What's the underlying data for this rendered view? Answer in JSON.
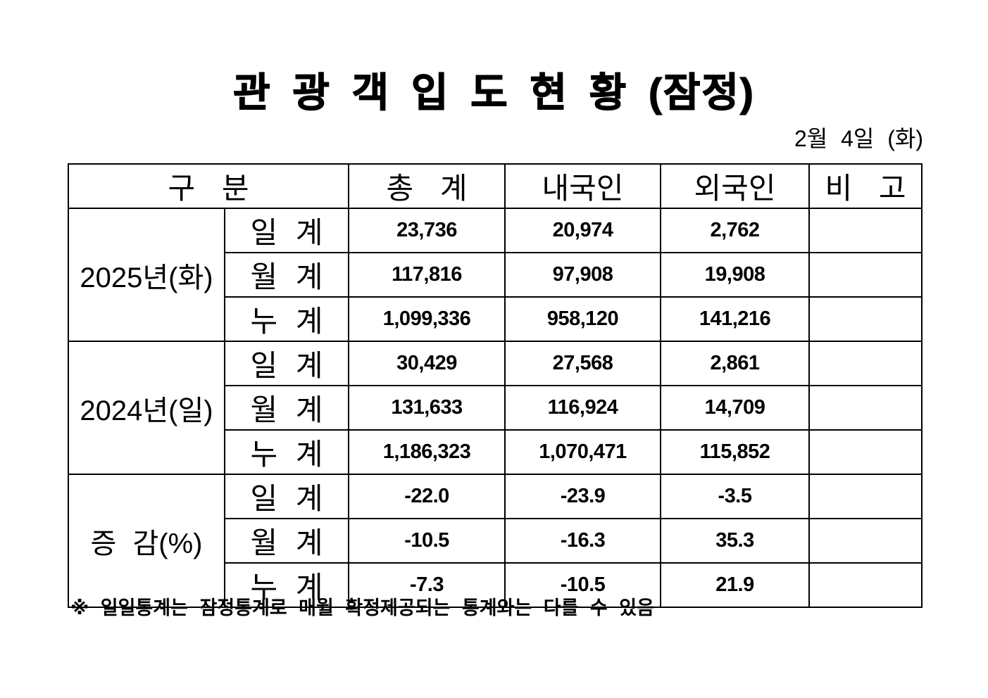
{
  "title": "관 광 객 입 도 현 황 (잠정)",
  "date": "2월 4일 (화)",
  "table": {
    "header": {
      "category": "구 분",
      "total": "총 계",
      "domestic": "내국인",
      "foreign": "외국인",
      "note": "비 고"
    },
    "groups": [
      {
        "label": "2025년(화)",
        "rows": [
          {
            "label": "일 계",
            "total": "23,736",
            "domestic": "20,974",
            "foreign": "2,762",
            "note": ""
          },
          {
            "label": "월 계",
            "total": "117,816",
            "domestic": "97,908",
            "foreign": "19,908",
            "note": ""
          },
          {
            "label": "누 계",
            "total": "1,099,336",
            "domestic": "958,120",
            "foreign": "141,216",
            "note": ""
          }
        ]
      },
      {
        "label": "2024년(일)",
        "rows": [
          {
            "label": "일 계",
            "total": "30,429",
            "domestic": "27,568",
            "foreign": "2,861",
            "note": ""
          },
          {
            "label": "월 계",
            "total": "131,633",
            "domestic": "116,924",
            "foreign": "14,709",
            "note": ""
          },
          {
            "label": "누 계",
            "total": "1,186,323",
            "domestic": "1,070,471",
            "foreign": "115,852",
            "note": ""
          }
        ]
      },
      {
        "label": "증 감(%)",
        "rows": [
          {
            "label": "일 계",
            "total": "-22.0",
            "domestic": "-23.9",
            "foreign": "-3.5",
            "note": ""
          },
          {
            "label": "월 계",
            "total": "-10.5",
            "domestic": "-16.3",
            "foreign": "35.3",
            "note": ""
          },
          {
            "label": "누 계",
            "total": "-7.3",
            "domestic": "-10.5",
            "foreign": "21.9",
            "note": ""
          }
        ]
      }
    ]
  },
  "footnote": "※ 일일통계는 잠정통계로 매월 확정제공되는 통계와는 다를 수 있음"
}
